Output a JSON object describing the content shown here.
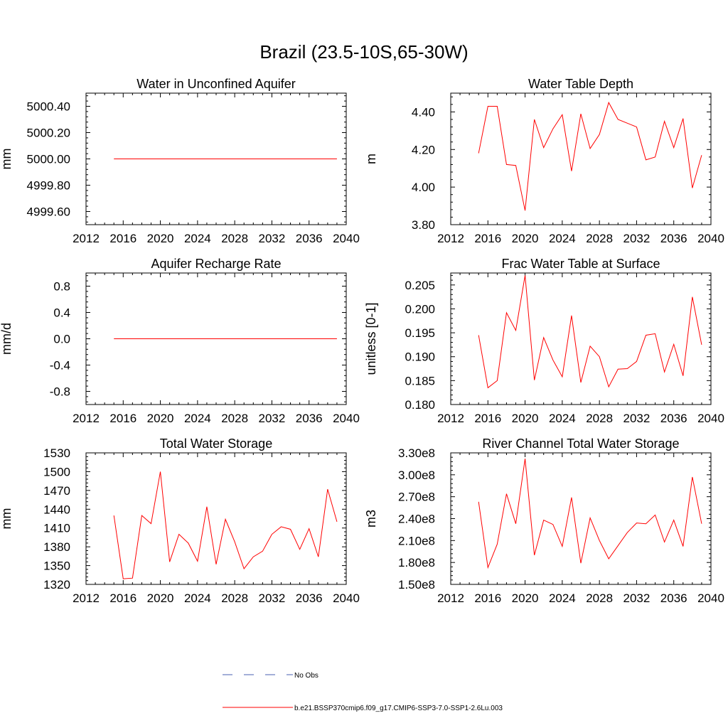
{
  "page_title": "Brazil (23.5-10S,65-30W)",
  "colors": {
    "model_line": "#ff0000",
    "obs_line": "#4a5fb0",
    "axis": "#000000"
  },
  "legend": [
    {
      "label": "No Obs",
      "style": "dashed",
      "color": "#4a5fb0"
    },
    {
      "label": "b.e21.BSSP370cmip6.f09_g17.CMIP6-SSP3-7.0-SSP1-2.6Lu.003",
      "style": "solid",
      "color": "#ff0000"
    }
  ],
  "chart_data": [
    {
      "type": "line",
      "title": "Water in Unconfined Aquifer",
      "ylabel": "mm",
      "xlim": [
        2012,
        2040
      ],
      "xticks": [
        2012,
        2016,
        2020,
        2024,
        2028,
        2032,
        2036,
        2040
      ],
      "xtick_labels": [
        "2012",
        "2016",
        "2020",
        "2024",
        "2028",
        "2032",
        "2036",
        "2040"
      ],
      "ylim": [
        4999.5,
        5000.5
      ],
      "yticks": [
        4999.6,
        4999.8,
        5000.0,
        5000.2,
        5000.4
      ],
      "ytick_labels": [
        "4999.60",
        "4999.80",
        "5000.00",
        "5000.20",
        "5000.40"
      ],
      "x": [
        2015,
        2016,
        2017,
        2018,
        2019,
        2020,
        2021,
        2022,
        2023,
        2024,
        2025,
        2026,
        2027,
        2028,
        2029,
        2030,
        2031,
        2032,
        2033,
        2034,
        2035,
        2036,
        2037,
        2038,
        2039
      ],
      "y": [
        5000,
        5000,
        5000,
        5000,
        5000,
        5000,
        5000,
        5000,
        5000,
        5000,
        5000,
        5000,
        5000,
        5000,
        5000,
        5000,
        5000,
        5000,
        5000,
        5000,
        5000,
        5000,
        5000,
        5000,
        5000
      ]
    },
    {
      "type": "line",
      "title": "Water Table Depth",
      "ylabel": "m",
      "xlim": [
        2012,
        2040
      ],
      "xticks": [
        2012,
        2016,
        2020,
        2024,
        2028,
        2032,
        2036,
        2040
      ],
      "xtick_labels": [
        "2012",
        "2016",
        "2020",
        "2024",
        "2028",
        "2032",
        "2036",
        "2040"
      ],
      "ylim": [
        3.8,
        4.5
      ],
      "yticks": [
        3.8,
        4.0,
        4.2,
        4.4
      ],
      "ytick_labels": [
        "3.80",
        "4.00",
        "4.20",
        "4.40"
      ],
      "x": [
        2015,
        2016,
        2017,
        2018,
        2019,
        2020,
        2021,
        2022,
        2023,
        2024,
        2025,
        2026,
        2027,
        2028,
        2029,
        2030,
        2032,
        2033,
        2034,
        2035,
        2036,
        2037,
        2038,
        2039
      ],
      "y": [
        4.18,
        4.43,
        4.43,
        4.12,
        4.115,
        3.875,
        4.36,
        4.21,
        4.31,
        4.385,
        4.085,
        4.39,
        4.205,
        4.28,
        4.45,
        4.36,
        4.32,
        4.145,
        4.16,
        4.35,
        4.21,
        4.365,
        3.995,
        4.17
      ]
    },
    {
      "type": "line",
      "title": "Aquifer Recharge Rate",
      "ylabel": "mm/d",
      "xlim": [
        2012,
        2040
      ],
      "xticks": [
        2012,
        2016,
        2020,
        2024,
        2028,
        2032,
        2036,
        2040
      ],
      "xtick_labels": [
        "2012",
        "2016",
        "2020",
        "2024",
        "2028",
        "2032",
        "2036",
        "2040"
      ],
      "ylim": [
        -1.0,
        1.0
      ],
      "yticks": [
        -0.8,
        -0.4,
        0.0,
        0.4,
        0.8
      ],
      "ytick_labels": [
        "-0.8",
        "-0.4",
        "0.0",
        "0.4",
        "0.8"
      ],
      "x": [
        2015,
        2016,
        2017,
        2018,
        2019,
        2020,
        2021,
        2022,
        2023,
        2024,
        2025,
        2026,
        2027,
        2028,
        2029,
        2030,
        2031,
        2032,
        2033,
        2034,
        2035,
        2036,
        2037,
        2038,
        2039
      ],
      "y": [
        0,
        0,
        0,
        0,
        0,
        0,
        0,
        0,
        0,
        0,
        0,
        0,
        0,
        0,
        0,
        0,
        0,
        0,
        0,
        0,
        0,
        0,
        0,
        0,
        0
      ]
    },
    {
      "type": "line",
      "title": "Frac Water Table at Surface",
      "ylabel": "unitless [0-1]",
      "xlim": [
        2012,
        2040
      ],
      "xticks": [
        2012,
        2016,
        2020,
        2024,
        2028,
        2032,
        2036,
        2040
      ],
      "xtick_labels": [
        "2012",
        "2016",
        "2020",
        "2024",
        "2028",
        "2032",
        "2036",
        "2040"
      ],
      "ylim": [
        0.18,
        0.2075
      ],
      "yticks": [
        0.18,
        0.185,
        0.19,
        0.195,
        0.2,
        0.205
      ],
      "ytick_labels": [
        "0.180",
        "0.185",
        "0.190",
        "0.195",
        "0.200",
        "0.205"
      ],
      "x": [
        2015,
        2016,
        2017,
        2018,
        2019,
        2020,
        2021,
        2022,
        2023,
        2024,
        2025,
        2026,
        2027,
        2028,
        2029,
        2030,
        2031,
        2032,
        2033,
        2034,
        2035,
        2036,
        2037,
        2038,
        2039
      ],
      "y": [
        0.1945,
        0.1835,
        0.185,
        0.1992,
        0.1955,
        0.207,
        0.1851,
        0.194,
        0.1893,
        0.1858,
        0.1986,
        0.1846,
        0.1922,
        0.19,
        0.1837,
        0.1874,
        0.1875,
        0.189,
        0.1945,
        0.1948,
        0.1868,
        0.1926,
        0.186,
        0.2025,
        0.1925
      ]
    },
    {
      "type": "line",
      "title": "Total Water Storage",
      "ylabel": "mm",
      "xlim": [
        2012,
        2040
      ],
      "xticks": [
        2012,
        2016,
        2020,
        2024,
        2028,
        2032,
        2036,
        2040
      ],
      "xtick_labels": [
        "2012",
        "2016",
        "2020",
        "2024",
        "2028",
        "2032",
        "2036",
        "2040"
      ],
      "ylim": [
        1320,
        1530
      ],
      "yticks": [
        1320,
        1350,
        1380,
        1410,
        1440,
        1470,
        1500,
        1530
      ],
      "ytick_labels": [
        "1320",
        "1350",
        "1380",
        "1410",
        "1440",
        "1470",
        "1500",
        "1530"
      ],
      "x": [
        2015,
        2016,
        2017,
        2018,
        2019,
        2020,
        2021,
        2022,
        2023,
        2024,
        2025,
        2026,
        2027,
        2028,
        2029,
        2030,
        2031,
        2032,
        2033,
        2034,
        2035,
        2036,
        2037,
        2038,
        2039
      ],
      "y": [
        1430,
        1329,
        1330,
        1430,
        1417,
        1500,
        1356,
        1400,
        1386,
        1357,
        1444,
        1352,
        1424,
        1388,
        1345,
        1364,
        1373,
        1400,
        1412,
        1408,
        1376,
        1409,
        1364,
        1472,
        1420
      ]
    },
    {
      "type": "line",
      "title": "River Channel Total Water Storage",
      "ylabel": "m3",
      "xlim": [
        2012,
        2040
      ],
      "xticks": [
        2012,
        2016,
        2020,
        2024,
        2028,
        2032,
        2036,
        2040
      ],
      "xtick_labels": [
        "2012",
        "2016",
        "2020",
        "2024",
        "2028",
        "2032",
        "2036",
        "2040"
      ],
      "ylim": [
        150000000,
        330000000
      ],
      "yticks": [
        150000000,
        180000000,
        210000000,
        240000000,
        270000000,
        300000000,
        330000000
      ],
      "ytick_labels": [
        "1.50e8",
        "1.80e8",
        "2.10e8",
        "2.40e8",
        "2.70e8",
        "3.00e8",
        "3.30e8"
      ],
      "x": [
        2015,
        2016,
        2017,
        2018,
        2019,
        2020,
        2021,
        2022,
        2023,
        2024,
        2025,
        2026,
        2027,
        2028,
        2029,
        2030,
        2031,
        2032,
        2033,
        2034,
        2035,
        2036,
        2037,
        2038,
        2039
      ],
      "y": [
        263000000,
        173000000,
        205000000,
        274000000,
        233000000,
        322000000,
        190000000,
        238000000,
        232000000,
        202000000,
        269000000,
        179000000,
        241000000,
        210000000,
        185000000,
        203000000,
        221000000,
        234000000,
        233000000,
        245000000,
        208000000,
        238000000,
        202000000,
        297000000,
        233000000
      ]
    }
  ]
}
